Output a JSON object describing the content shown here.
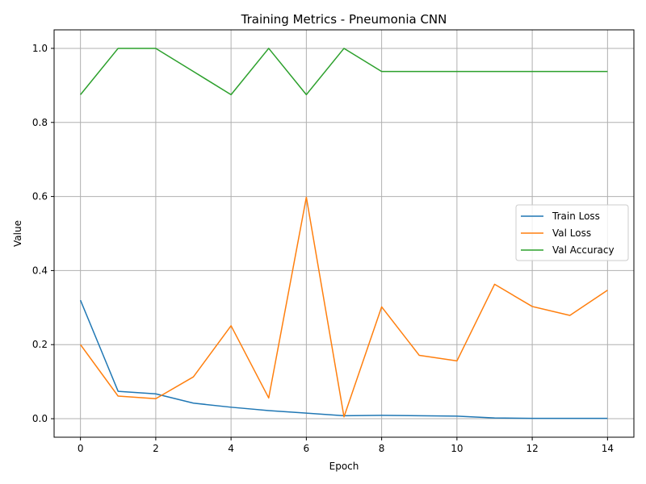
{
  "chart_data": {
    "type": "line",
    "title": "Training Metrics - Pneumonia CNN",
    "xlabel": "Epoch",
    "ylabel": "Value",
    "xlim": [
      -0.7,
      14.7
    ],
    "ylim": [
      -0.05,
      1.05
    ],
    "xticks": [
      0,
      2,
      4,
      6,
      8,
      10,
      12,
      14
    ],
    "xtick_labels": [
      "0",
      "2",
      "4",
      "6",
      "8",
      "10",
      "12",
      "14"
    ],
    "yticks": [
      0.0,
      0.2,
      0.4,
      0.6,
      0.8,
      1.0
    ],
    "ytick_labels": [
      "0.0",
      "0.2",
      "0.4",
      "0.6",
      "0.8",
      "1.0"
    ],
    "grid": true,
    "legend_position": "center-right",
    "x": [
      0,
      1,
      2,
      3,
      4,
      5,
      6,
      7,
      8,
      9,
      10,
      11,
      12,
      13,
      14
    ],
    "series": [
      {
        "name": "Train Loss",
        "color": "#1f77b4",
        "values": [
          0.32,
          0.074,
          0.067,
          0.042,
          0.031,
          0.022,
          0.015,
          0.008,
          0.009,
          0.008,
          0.007,
          0.002,
          0.001,
          0.001,
          0.001
        ]
      },
      {
        "name": "Val Loss",
        "color": "#ff7f0e",
        "values": [
          0.2,
          0.061,
          0.054,
          0.113,
          0.251,
          0.056,
          0.598,
          0.005,
          0.302,
          0.171,
          0.156,
          0.363,
          0.303,
          0.279,
          0.347
        ]
      },
      {
        "name": "Val Accuracy",
        "color": "#2ca02c",
        "values": [
          0.875,
          1.0,
          1.0,
          0.9375,
          0.875,
          1.0,
          0.875,
          1.0,
          0.9375,
          0.9375,
          0.9375,
          0.9375,
          0.9375,
          0.9375,
          0.9375
        ]
      }
    ]
  }
}
